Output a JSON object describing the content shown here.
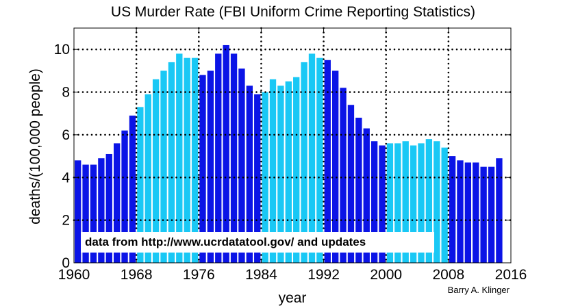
{
  "chart_data": {
    "type": "bar",
    "title": "US Murder Rate (FBI Uniform Crime Reporting Statistics)",
    "xlabel": "year",
    "ylabel": "deaths/(100,000 people)",
    "xlim": [
      1960,
      2016
    ],
    "ylim": [
      0,
      11
    ],
    "xticks": [
      1960,
      1968,
      1976,
      1984,
      1992,
      2000,
      2008,
      2016
    ],
    "yticks": [
      0,
      2,
      4,
      6,
      8,
      10
    ],
    "grid": true,
    "annotation": "data from http://www.ucrdatatool.gov/ and updates",
    "credit": "Barry A. Klinger",
    "colors": {
      "dark": "#0b14e6",
      "light": "#19c8f5"
    },
    "x": [
      1960,
      1961,
      1962,
      1963,
      1964,
      1965,
      1966,
      1967,
      1968,
      1969,
      1970,
      1971,
      1972,
      1973,
      1974,
      1975,
      1976,
      1977,
      1978,
      1979,
      1980,
      1981,
      1982,
      1983,
      1984,
      1985,
      1986,
      1987,
      1988,
      1989,
      1990,
      1991,
      1992,
      1993,
      1994,
      1995,
      1996,
      1997,
      1998,
      1999,
      2000,
      2001,
      2002,
      2003,
      2004,
      2005,
      2006,
      2007,
      2008,
      2009,
      2010,
      2011,
      2012,
      2013,
      2014
    ],
    "values": [
      4.8,
      4.6,
      4.6,
      4.9,
      5.1,
      5.6,
      6.2,
      6.9,
      7.3,
      7.9,
      8.6,
      9.0,
      9.4,
      9.8,
      9.6,
      9.6,
      8.8,
      9.0,
      9.8,
      10.2,
      9.8,
      9.1,
      8.3,
      7.9,
      8.0,
      8.6,
      8.3,
      8.5,
      8.7,
      9.4,
      9.8,
      9.6,
      9.5,
      9.0,
      8.2,
      7.4,
      6.8,
      6.3,
      5.7,
      5.5,
      5.6,
      5.6,
      5.7,
      5.5,
      5.6,
      5.8,
      5.7,
      5.4,
      5.0,
      4.8,
      4.7,
      4.7,
      4.5,
      4.5,
      4.9
    ],
    "bar_colors": [
      "dark",
      "dark",
      "dark",
      "dark",
      "dark",
      "dark",
      "dark",
      "dark",
      "light",
      "light",
      "light",
      "light",
      "light",
      "light",
      "light",
      "light",
      "dark",
      "dark",
      "dark",
      "dark",
      "dark",
      "dark",
      "dark",
      "dark",
      "light",
      "light",
      "light",
      "light",
      "light",
      "light",
      "light",
      "light",
      "dark",
      "dark",
      "dark",
      "dark",
      "dark",
      "dark",
      "dark",
      "dark",
      "light",
      "light",
      "light",
      "light",
      "light",
      "light",
      "light",
      "light",
      "dark",
      "dark",
      "dark",
      "dark",
      "dark",
      "dark",
      "dark"
    ]
  }
}
